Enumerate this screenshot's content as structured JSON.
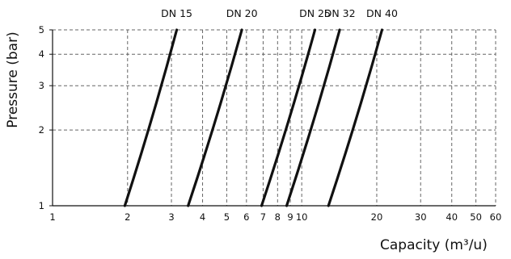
{
  "chart_data": {
    "type": "line",
    "title": "",
    "xlabel": "Capacity (m³/u)",
    "ylabel": "Pressure (bar)",
    "x_scale": "log",
    "y_scale": "log",
    "xlim": [
      1,
      60
    ],
    "ylim": [
      1,
      5
    ],
    "x_ticks": [
      1,
      2,
      3,
      4,
      5,
      6,
      7,
      8,
      9,
      10,
      20,
      30,
      40,
      50,
      60
    ],
    "x_tick_labels": [
      "1",
      "2",
      "3",
      "4",
      "5",
      "6",
      "7",
      "8",
      "9",
      "10",
      "20",
      "30",
      "40",
      "50",
      "60"
    ],
    "y_ticks": [
      1,
      2,
      3,
      4,
      5
    ],
    "y_tick_labels": [
      "1",
      "2",
      "3",
      "4",
      "5"
    ],
    "series": [
      {
        "name": "DN 15",
        "x": [
          1.95,
          3.15
        ],
        "y": [
          1,
          5
        ]
      },
      {
        "name": "DN 20",
        "x": [
          3.5,
          5.75
        ],
        "y": [
          1,
          5
        ]
      },
      {
        "name": "DN 25",
        "x": [
          6.9,
          11.3
        ],
        "y": [
          1,
          5
        ]
      },
      {
        "name": "DN 32",
        "x": [
          8.7,
          14.2
        ],
        "y": [
          1,
          5
        ]
      },
      {
        "name": "DN 40",
        "x": [
          12.8,
          21
        ],
        "y": [
          1,
          5
        ]
      }
    ],
    "line_color": "#111111",
    "grid_color": "#666666",
    "grid": true,
    "legend": "top, above each line"
  }
}
